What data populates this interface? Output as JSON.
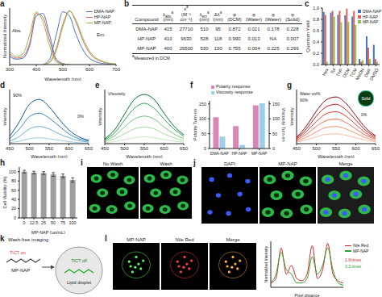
{
  "chart_data": [
    {
      "panel": "a",
      "type": "line",
      "x_label": "Wavelength (nm)",
      "y_label": "Normalized Intensity",
      "x": [
        300,
        325,
        350,
        375,
        400,
        425,
        450,
        475,
        500,
        525,
        550,
        575,
        600,
        650,
        700
      ],
      "xlim": [
        300,
        700
      ],
      "xticks": [
        300,
        400,
        500,
        600,
        700
      ],
      "ylim": [
        0,
        1.05
      ],
      "tick_labels": "x",
      "legend": "top-right",
      "annotations": [
        "Abs.",
        "Em."
      ],
      "series": [
        {
          "name": "DMA-NAP",
          "color": "#4a72c0",
          "values": [
            0.15,
            0.1,
            0.12,
            0.35,
            0.9,
            0.95,
            0.55,
            0.1,
            0.02,
            0,
            null,
            null,
            null,
            null,
            null
          ]
        },
        {
          "name": "HP-NAP",
          "color": "#e0605a",
          "values": [
            0.2,
            0.12,
            0.15,
            0.4,
            0.95,
            0.88,
            0.45,
            0.08,
            0.01,
            0,
            null,
            null,
            null,
            null,
            null
          ]
        },
        {
          "name": "MP-NAP",
          "color": "#8cc04b",
          "values": [
            0.25,
            0.15,
            0.2,
            0.55,
            0.98,
            0.8,
            0.35,
            0.05,
            0.01,
            0,
            null,
            null,
            null,
            null,
            null
          ]
        },
        {
          "name": "DMA-NAP",
          "color": "#4a72c0",
          "values": [
            null,
            null,
            null,
            null,
            null,
            0,
            0.1,
            0.55,
            0.98,
            0.9,
            0.55,
            0.28,
            0.12,
            0.02,
            0
          ]
        },
        {
          "name": "HP-NAP",
          "color": "#e0605a",
          "values": [
            null,
            null,
            null,
            null,
            null,
            0,
            0.05,
            0.3,
            0.75,
            1.0,
            0.78,
            0.45,
            0.22,
            0.05,
            0.01
          ]
        },
        {
          "name": "MP-NAP",
          "color": "#8cc04b",
          "values": [
            null,
            null,
            null,
            null,
            null,
            0,
            0.04,
            0.25,
            0.7,
            0.99,
            0.82,
            0.5,
            0.25,
            0.06,
            0.01
          ]
        }
      ]
    },
    {
      "panel": "c",
      "type": "bar",
      "y_label": "Quantum Yield",
      "categories": [
        "Hex",
        "Tol",
        "THF",
        "DCM",
        "TCM",
        "MeOH",
        "DMF",
        "DMSO"
      ],
      "ylim": [
        0,
        1
      ],
      "yticks": [
        {
          "value": 0,
          "label": "0.0"
        },
        0.2,
        0.4,
        0.6,
        0.8,
        {
          "value": 1,
          "label": "1.0"
        }
      ],
      "legend": "top-right",
      "series": [
        {
          "name": "DMA-NAP",
          "color": "#4a72c0",
          "values": [
            0.93,
            0.92,
            0.88,
            0.872,
            0.85,
            0.1,
            0.5,
            0.35
          ]
        },
        {
          "name": "HP-NAP",
          "color": "#e0605a",
          "values": [
            0.88,
            0.95,
            0.95,
            0.99,
            0.95,
            0.05,
            0.3,
            0.1
          ]
        },
        {
          "name": "MP-NAP",
          "color": "#8cc04b",
          "values": [
            0.05,
            0.85,
            0.75,
            0.755,
            0.7,
            0.08,
            0.1,
            0.05
          ]
        }
      ]
    },
    {
      "panel": "d",
      "type": "line",
      "x_label": "Wavelength (nm)",
      "y_label": "Intensity",
      "x": [
        450,
        475,
        500,
        525,
        550,
        575,
        600,
        625,
        650
      ],
      "xlim": [
        450,
        650
      ],
      "xticks": [
        450,
        500,
        550,
        600,
        650
      ],
      "ylim": [
        0,
        1.1
      ],
      "tick_labels": "x",
      "annotations": [
        "90%",
        "0%"
      ],
      "series": [
        {
          "color": "#9ecae1",
          "values": [
            0.02,
            0.05,
            0.1,
            0.12,
            0.1,
            0.07,
            0.04,
            0.02,
            0.01
          ]
        },
        {
          "color": "#6baed6",
          "values": [
            0.05,
            0.15,
            0.3,
            0.35,
            0.3,
            0.2,
            0.12,
            0.06,
            0.03
          ]
        },
        {
          "color": "#3182bd",
          "values": [
            0.1,
            0.3,
            0.55,
            0.62,
            0.52,
            0.36,
            0.2,
            0.1,
            0.05
          ]
        },
        {
          "color": "#08519c",
          "values": [
            0.15,
            0.45,
            0.8,
            0.9,
            0.75,
            0.5,
            0.28,
            0.14,
            0.07
          ]
        }
      ]
    },
    {
      "panel": "e",
      "type": "line",
      "x_label": "Wavelength (nm)",
      "y_label": "Intensity",
      "x": [
        450,
        475,
        500,
        525,
        550,
        575,
        600,
        625,
        650
      ],
      "xlim": [
        450,
        650
      ],
      "xticks": [
        450,
        500,
        550,
        600,
        650
      ],
      "ylim": [
        0,
        1.1
      ],
      "tick_labels": "x",
      "annotations": [
        "Viscosity"
      ],
      "series": [
        {
          "color": "#c7e9c0",
          "values": [
            0.02,
            0.04,
            0.08,
            0.12,
            0.14,
            0.12,
            0.08,
            0.05,
            0.03
          ]
        },
        {
          "color": "#a1d99b",
          "values": [
            0.04,
            0.1,
            0.2,
            0.3,
            0.34,
            0.3,
            0.2,
            0.12,
            0.06
          ]
        },
        {
          "color": "#74c476",
          "values": [
            0.06,
            0.16,
            0.34,
            0.5,
            0.56,
            0.5,
            0.34,
            0.2,
            0.1
          ]
        },
        {
          "color": "#31a354",
          "values": [
            0.08,
            0.22,
            0.48,
            0.72,
            0.82,
            0.72,
            0.5,
            0.3,
            0.15
          ]
        },
        {
          "color": "#006d2c",
          "values": [
            0.1,
            0.28,
            0.6,
            0.9,
            1.0,
            0.9,
            0.62,
            0.36,
            0.18
          ]
        }
      ]
    },
    {
      "panel": "f",
      "type": "bar",
      "categories": [
        "DMA-NAP",
        "HP-NAP",
        "MP-NAP"
      ],
      "y_label": "Polarity Turn-on",
      "y2_label": "Viscosity Turn-on",
      "ylim": [
        0,
        160
      ],
      "yticks": [
        0,
        50,
        100,
        150
      ],
      "y2lim": [
        0,
        160
      ],
      "y2ticks": [
        0,
        50,
        100,
        150
      ],
      "legend": "top",
      "series": [
        {
          "name": "Polarity response",
          "color": "#d987b5",
          "values": [
            105,
            75,
            145
          ]
        },
        {
          "name": "Viscosity response",
          "color": "#9fcfe8",
          "values": [
            40,
            12,
            152
          ],
          "axis": "y2"
        }
      ]
    },
    {
      "panel": "g",
      "type": "line",
      "x_label": "Wavelength (nm)",
      "y_label": "Intensity",
      "x": [
        450,
        475,
        500,
        525,
        550,
        575,
        600,
        625,
        650
      ],
      "xlim": [
        450,
        650
      ],
      "xticks": [
        450,
        500,
        550,
        600,
        650
      ],
      "ylim": [
        0,
        1.1
      ],
      "tick_labels": "x",
      "annotations": [
        "Water vol%",
        "90%",
        "0%",
        {
          "text": "Solid",
          "marker": "circle"
        }
      ],
      "series": [
        {
          "color": "#fcbba1",
          "values": [
            0.03,
            0.08,
            0.14,
            0.19,
            0.2,
            0.17,
            0.12,
            0.07,
            0.04
          ]
        },
        {
          "color": "#fc9272",
          "values": [
            0.05,
            0.13,
            0.24,
            0.33,
            0.35,
            0.3,
            0.21,
            0.12,
            0.06
          ]
        },
        {
          "color": "#fb6a4a",
          "values": [
            0.07,
            0.19,
            0.35,
            0.47,
            0.5,
            0.43,
            0.3,
            0.17,
            0.09
          ]
        },
        {
          "color": "#ef3b2c",
          "values": [
            0.09,
            0.25,
            0.45,
            0.61,
            0.65,
            0.56,
            0.39,
            0.22,
            0.11
          ]
        },
        {
          "color": "#cb181d",
          "values": [
            0.11,
            0.3,
            0.56,
            0.75,
            0.8,
            0.69,
            0.48,
            0.27,
            0.14
          ]
        },
        {
          "color": "#99000d",
          "values": [
            0.13,
            0.36,
            0.66,
            0.89,
            0.95,
            0.82,
            0.57,
            0.32,
            0.16
          ]
        }
      ]
    },
    {
      "panel": "h",
      "type": "bar",
      "categories": [
        "0",
        "12.5",
        "25",
        "50",
        "75",
        "100"
      ],
      "x_label": "MP-NAP (μg/mL)",
      "y_label": "Cell Viability (%)",
      "ylim": [
        0,
        110
      ],
      "yticks": [
        0,
        20,
        40,
        60,
        80,
        100
      ],
      "color": "#9e9e9e",
      "values": [
        100,
        98,
        97,
        94,
        91,
        82
      ],
      "errors": [
        3,
        3,
        3,
        4,
        4,
        5
      ]
    },
    {
      "panel": "l",
      "type": "line",
      "x_label": "Pixel distance",
      "y_label": "Normalized Intensity",
      "x": [
        0,
        1,
        2,
        3,
        4,
        5,
        6,
        7,
        8,
        9,
        10,
        11,
        12,
        13,
        14
      ],
      "xlim": [
        0,
        14
      ],
      "ylim": [
        0,
        1.05
      ],
      "tick_labels": false,
      "legend": "right",
      "annotations": [
        {
          "text": "1.9 times",
          "color": "#d62728"
        },
        {
          "text": "3.3 times",
          "color": "#2ca02c"
        }
      ],
      "series": [
        {
          "name": "Nile Red",
          "color": "#d62728",
          "values": [
            0.1,
            0.2,
            0.9,
            0.3,
            0.5,
            0.2,
            0.15,
            0.3,
            0.95,
            0.2,
            0.4,
            1.0,
            0.3,
            0.15,
            0.1
          ]
        },
        {
          "name": "MP-NAP",
          "color": "#2ca02c",
          "values": [
            0.1,
            0.3,
            0.8,
            0.4,
            0.3,
            0.1,
            0.1,
            0.2,
            0.7,
            0.3,
            0.5,
            0.9,
            0.4,
            0.1,
            0.05
          ]
        }
      ]
    }
  ],
  "table": {
    "panel": "b",
    "columns": [
      {
        "text": "Compound"
      },
      {
        "text": "λ",
        "sub": "abs",
        "sup": "a",
        "unit": "(nm)"
      },
      {
        "text": "ε",
        "sup": "a",
        "unit": "(M⁻¹ cm⁻¹)"
      },
      {
        "text": "λ",
        "sub": "em",
        "sup": "a",
        "unit": "(nm)"
      },
      {
        "text": "Δλ",
        "sup": "a",
        "unit": "(nm)"
      },
      {
        "text": "φ",
        "unit": "(DCM)"
      },
      {
        "text": "φ",
        "unit": "(Water)"
      },
      {
        "text": "φ",
        "unit": "(Water)"
      },
      {
        "text": "φ",
        "unit": "(Solid)"
      }
    ],
    "rows": [
      [
        "DMA-NAP",
        "415",
        "27710",
        "510",
        "95",
        "0.872",
        "0.021",
        "0.178",
        "0.228"
      ],
      [
        "HP-NAP",
        "410",
        "9630",
        "528",
        "118",
        "0.990",
        "0.013",
        "NA",
        "0.007"
      ],
      [
        "MP-NAP",
        "400",
        "26500",
        "530",
        "130",
        "0.755",
        "0.004",
        "0.225",
        "0.299"
      ]
    ],
    "footnote": {
      "sup": "a",
      "text": "Measured in DCM"
    }
  },
  "images": [
    {
      "panel": "i",
      "titles": [
        "No Wash",
        "Wash"
      ]
    },
    {
      "panel": "j",
      "titles": [
        "DAPI",
        "MP-NAP",
        "Merge"
      ]
    },
    {
      "titles": [
        "MP-NAP",
        "Nile Red",
        "Merge"
      ]
    }
  ],
  "diagram": {
    "panel": "k",
    "title": "Wash-free imaging",
    "molecule": "MP-NAP",
    "labels": [
      "TICT on",
      "TICT off"
    ],
    "target": "Lipid droplet"
  }
}
